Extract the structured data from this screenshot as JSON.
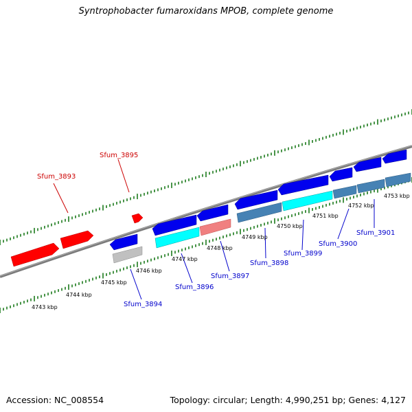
{
  "title": "Syntrophobacter fumaroxidans MPOB, complete genome",
  "footer": {
    "accession": "Accession: NC_008554",
    "summary": "Topology: circular; Length: 4,990,251 bp; Genes: 4,127"
  },
  "colors": {
    "forward_gene": "#ff0000",
    "forward_gene_light": "#f08080",
    "reverse_gene": "#0000ff",
    "cyan_feature": "#00ffff",
    "steel_feature": "#4682b4",
    "gray_feature": "#c0c0c0",
    "axis": "#808080",
    "tick": "#1a7a1a",
    "reverse_label": "#0000cc",
    "forward_label": "#cc0000"
  },
  "scale": {
    "unit": "kbp",
    "labels": [
      "4743 kbp",
      "4744 kbp",
      "4745 kbp",
      "4746 kbp",
      "4747 kbp",
      "4748 kbp",
      "4749 kbp",
      "4750 kbp",
      "4751 kbp",
      "4752 kbp",
      "4753 kbp"
    ]
  },
  "genes": {
    "forward_labels": [
      "Sfum_3893",
      "Sfum_3895"
    ],
    "reverse_labels": [
      "Sfum_3894",
      "Sfum_3896",
      "Sfum_3897",
      "Sfum_3898",
      "Sfum_3899",
      "Sfum_3900",
      "Sfum_3901"
    ]
  }
}
